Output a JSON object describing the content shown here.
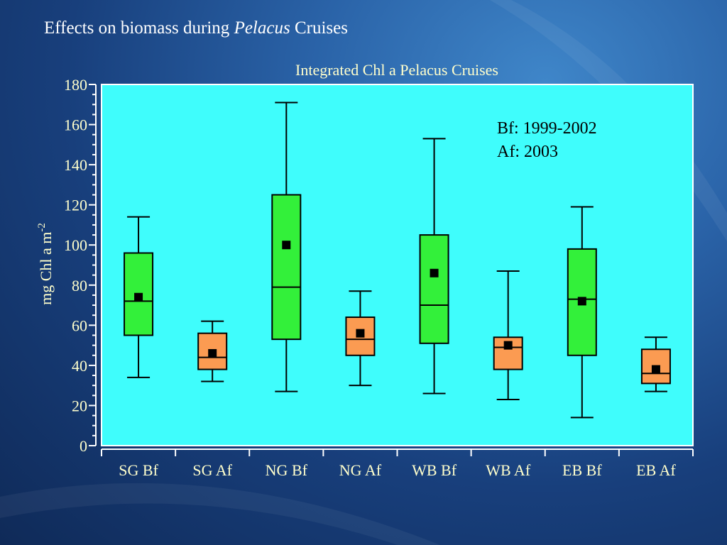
{
  "slide": {
    "title_prefix": "Effects on biomass during ",
    "title_italic": "Pelacus",
    "title_suffix": " Cruises"
  },
  "chart_data": {
    "type": "box",
    "title": "Integrated Chl a Pelacus Cruises",
    "ylabel_main": "mg Chl a m",
    "ylabel_superscript": "-2",
    "ylim": [
      0,
      180
    ],
    "yticks": [
      0,
      20,
      40,
      60,
      80,
      100,
      120,
      140,
      160,
      180
    ],
    "categories": [
      "SG Bf",
      "SG Af",
      "NG Bf",
      "NG Af",
      "WB Bf",
      "WB Af",
      "EB Bf",
      "EB Af"
    ],
    "boxes": [
      {
        "min": 34,
        "q1": 55,
        "median": 72,
        "q3": 96,
        "max": 114,
        "mean": 74,
        "group": "Bf"
      },
      {
        "min": 32,
        "q1": 38,
        "median": 44,
        "q3": 56,
        "max": 62,
        "mean": 46,
        "group": "Af"
      },
      {
        "min": 27,
        "q1": 53,
        "median": 79,
        "q3": 125,
        "max": 171,
        "mean": 100,
        "group": "Bf"
      },
      {
        "min": 30,
        "q1": 45,
        "median": 53,
        "q3": 64,
        "max": 77,
        "mean": 56,
        "group": "Af"
      },
      {
        "min": 26,
        "q1": 51,
        "median": 70,
        "q3": 105,
        "max": 153,
        "mean": 86,
        "group": "Bf"
      },
      {
        "min": 23,
        "q1": 38,
        "median": 49,
        "q3": 54,
        "max": 87,
        "mean": 50,
        "group": "Af"
      },
      {
        "min": 14,
        "q1": 45,
        "median": 73,
        "q3": 98,
        "max": 119,
        "mean": 72,
        "group": "Bf"
      },
      {
        "min": 27,
        "q1": 31,
        "median": 36,
        "q3": 48,
        "max": 54,
        "mean": 38,
        "group": "Af"
      }
    ],
    "annotation_lines": [
      "Bf: 1999-2002",
      "Af: 2003"
    ],
    "colors": {
      "Bf": "#33f03a",
      "Af": "#fb9b52",
      "plot_background": "#3ffdfc",
      "axis_text": "#ffffcc",
      "mean_marker": "#000000"
    }
  }
}
